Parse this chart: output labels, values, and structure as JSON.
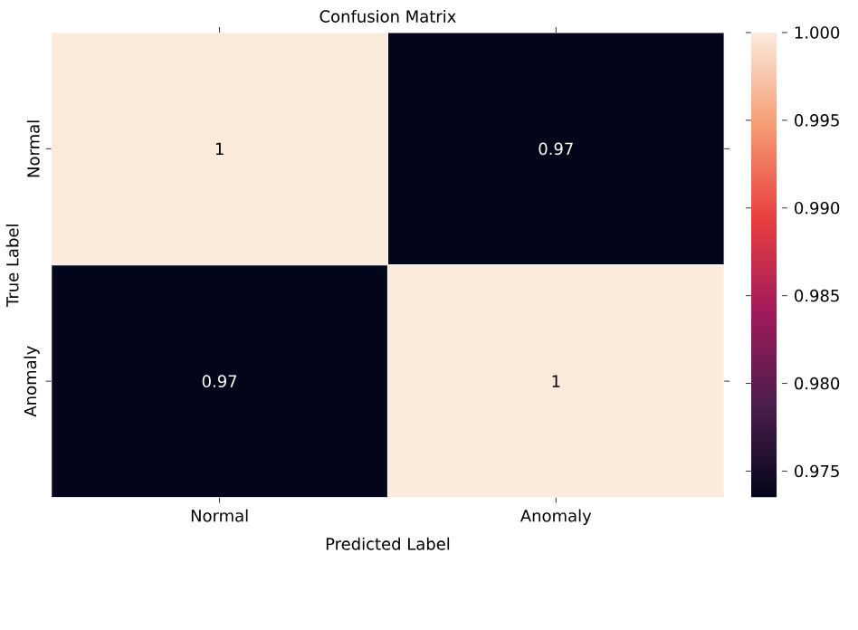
{
  "chart_data": {
    "type": "heatmap",
    "title": "Confusion Matrix",
    "xlabel": "Predicted Label",
    "ylabel": "True Label",
    "categories": [
      "Normal",
      "Anomaly"
    ],
    "y_categories": [
      "Normal",
      "Anomaly"
    ],
    "cells": [
      [
        1,
        0.9735
      ],
      [
        0.9735,
        1
      ]
    ],
    "cell_labels": [
      [
        "1",
        "0.97"
      ],
      [
        "0.97",
        "1"
      ]
    ],
    "clim": [
      0.9735,
      1.0
    ],
    "cticks": [
      {
        "value": 0.975,
        "label": "0.975"
      },
      {
        "value": 0.98,
        "label": "0.980"
      },
      {
        "value": 0.985,
        "label": "0.985"
      },
      {
        "value": 0.99,
        "label": "0.990"
      },
      {
        "value": 0.995,
        "label": "0.995"
      },
      {
        "value": 1.0,
        "label": "1.000"
      }
    ]
  }
}
